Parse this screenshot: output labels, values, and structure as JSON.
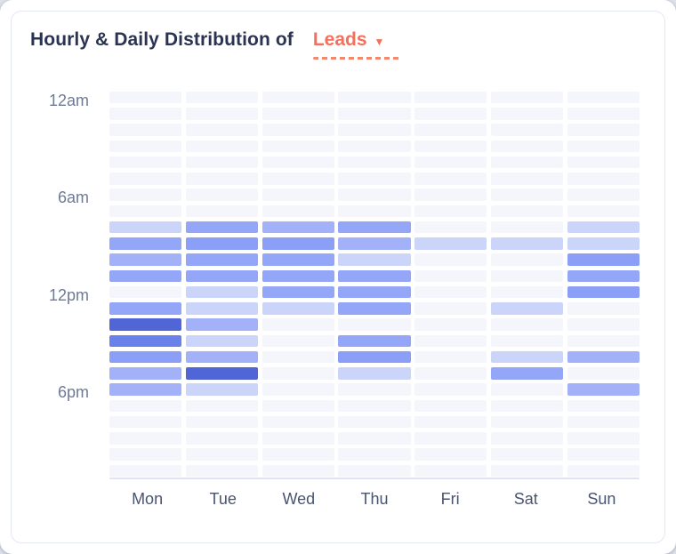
{
  "header": {
    "title": "Hourly & Daily Distribution of",
    "metric_selector": {
      "label": "Leads",
      "caret_icon": "caret-down",
      "accent_color": "#f2705c"
    }
  },
  "chart_data": {
    "type": "heatmap",
    "title": "Hourly & Daily Distribution of Leads",
    "x_categories": [
      "Mon",
      "Tue",
      "Wed",
      "Thu",
      "Fri",
      "Sat",
      "Sun"
    ],
    "y_axis": {
      "unit": "hour-of-day",
      "rows": 24,
      "tick_labels": [
        {
          "row_index": 0,
          "label": "12am"
        },
        {
          "row_index": 6,
          "label": "6am"
        },
        {
          "row_index": 12,
          "label": "12pm"
        },
        {
          "row_index": 18,
          "label": "6pm"
        }
      ]
    },
    "value_scale": "relative intensity level, 0 (none) to 6 (highest)",
    "palette": [
      "#f5f6fc",
      "#cbd5fa",
      "#a3b1f8",
      "#93a6f7",
      "#8b9ff7",
      "#6b81ea",
      "#5066d6"
    ],
    "matrix": [
      [
        0,
        0,
        0,
        0,
        0,
        0,
        0
      ],
      [
        0,
        0,
        0,
        0,
        0,
        0,
        0
      ],
      [
        0,
        0,
        0,
        0,
        0,
        0,
        0
      ],
      [
        0,
        0,
        0,
        0,
        0,
        0,
        0
      ],
      [
        0,
        0,
        0,
        0,
        0,
        0,
        0
      ],
      [
        0,
        0,
        0,
        0,
        0,
        0,
        0
      ],
      [
        0,
        0,
        0,
        0,
        0,
        0,
        0
      ],
      [
        0,
        0,
        0,
        0,
        0,
        0,
        0
      ],
      [
        1,
        3,
        2,
        3,
        0,
        0,
        1
      ],
      [
        3,
        4,
        4,
        2,
        1,
        1,
        1
      ],
      [
        2,
        3,
        3,
        1,
        0,
        0,
        4
      ],
      [
        3,
        3,
        3,
        3,
        0,
        0,
        3
      ],
      [
        0,
        1,
        3,
        3,
        0,
        0,
        4
      ],
      [
        3,
        1,
        1,
        3,
        0,
        1,
        0
      ],
      [
        6,
        2,
        0,
        0,
        0,
        0,
        0
      ],
      [
        5,
        1,
        0,
        3,
        0,
        0,
        0
      ],
      [
        4,
        2,
        0,
        4,
        0,
        1,
        2
      ],
      [
        2,
        6,
        0,
        1,
        0,
        3,
        0
      ],
      [
        2,
        1,
        0,
        0,
        0,
        0,
        2
      ],
      [
        0,
        0,
        0,
        0,
        0,
        0,
        0
      ],
      [
        0,
        0,
        0,
        0,
        0,
        0,
        0
      ],
      [
        0,
        0,
        0,
        0,
        0,
        0,
        0
      ],
      [
        0,
        0,
        0,
        0,
        0,
        0,
        0
      ],
      [
        0,
        0,
        0,
        0,
        0,
        0,
        0
      ]
    ],
    "grid": "off",
    "legend": "none"
  }
}
